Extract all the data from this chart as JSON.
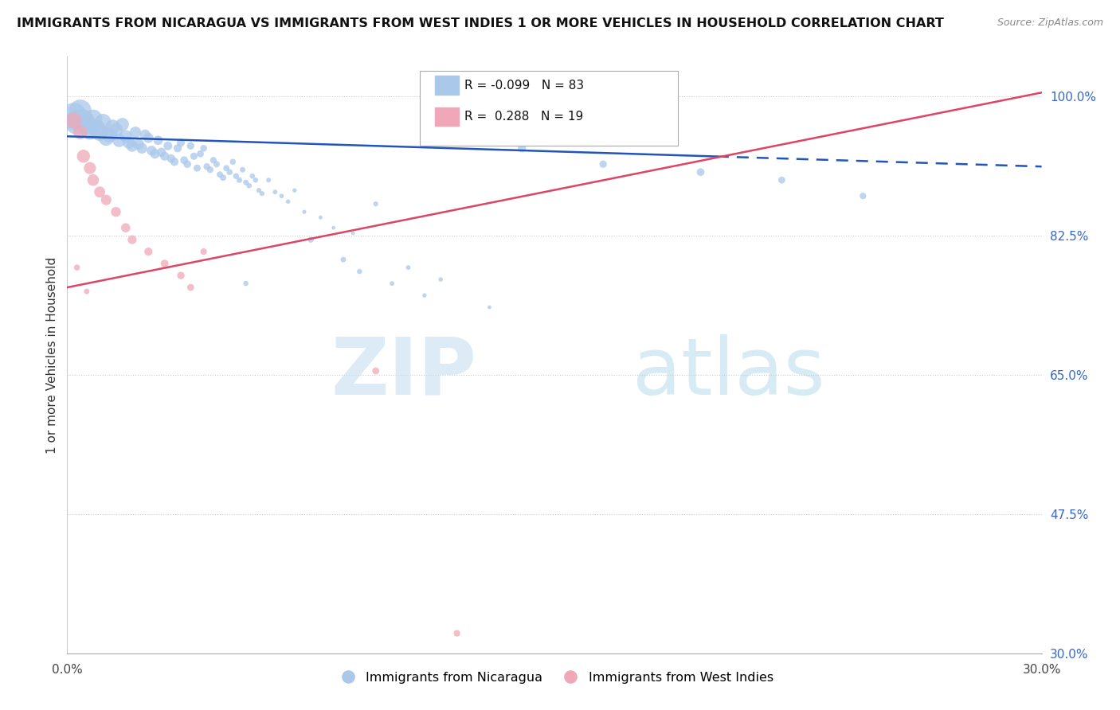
{
  "title": "IMMIGRANTS FROM NICARAGUA VS IMMIGRANTS FROM WEST INDIES 1 OR MORE VEHICLES IN HOUSEHOLD CORRELATION CHART",
  "source": "Source: ZipAtlas.com",
  "ylabel": "1 or more Vehicles in Household",
  "yticks": [
    30.0,
    47.5,
    65.0,
    82.5,
    100.0
  ],
  "ytick_labels": [
    "30.0%",
    "47.5%",
    "65.0%",
    "82.5%",
    "100.0%"
  ],
  "xmin": 0.0,
  "xmax": 30.0,
  "ymin": 30.0,
  "ymax": 105.0,
  "blue_R": -0.099,
  "blue_N": 83,
  "pink_R": 0.288,
  "pink_N": 19,
  "blue_color": "#aac8ea",
  "pink_color": "#f0a8b8",
  "blue_line_color": "#2255bb",
  "pink_line_color": "#dd4466",
  "blue_label": "Immigrants from Nicaragua",
  "pink_label": "Immigrants from West Indies",
  "watermark_zip": "ZIP",
  "watermark_atlas": "atlas",
  "blue_line_y0": 95.0,
  "blue_line_y30": 91.2,
  "pink_line_y0": 76.0,
  "pink_line_y30": 100.5,
  "blue_solid_xmax": 20.0,
  "blue_scatter_x": [
    0.2,
    0.3,
    0.4,
    0.5,
    0.6,
    0.7,
    0.8,
    0.9,
    1.0,
    1.1,
    1.2,
    1.3,
    1.4,
    1.5,
    1.6,
    1.7,
    1.8,
    1.9,
    2.0,
    2.1,
    2.2,
    2.3,
    2.4,
    2.5,
    2.6,
    2.7,
    2.8,
    2.9,
    3.0,
    3.1,
    3.2,
    3.3,
    3.4,
    3.5,
    3.6,
    3.7,
    3.8,
    3.9,
    4.0,
    4.1,
    4.2,
    4.3,
    4.4,
    4.5,
    4.6,
    4.7,
    4.8,
    4.9,
    5.0,
    5.1,
    5.2,
    5.3,
    5.4,
    5.5,
    5.6,
    5.7,
    5.8,
    5.9,
    6.0,
    6.2,
    6.4,
    6.6,
    6.8,
    7.0,
    7.3,
    7.8,
    8.2,
    8.8,
    9.5,
    10.5,
    11.5,
    14.0,
    16.5,
    19.5,
    22.0,
    24.5,
    5.5,
    7.5,
    8.5,
    9.0,
    10.0,
    11.0,
    13.0
  ],
  "blue_scatter_y": [
    97.5,
    96.8,
    98.2,
    97.0,
    96.5,
    95.8,
    97.2,
    96.0,
    95.5,
    96.8,
    94.8,
    95.2,
    96.2,
    95.8,
    94.5,
    96.5,
    95.0,
    94.2,
    93.8,
    95.5,
    94.0,
    93.5,
    95.2,
    94.8,
    93.2,
    92.8,
    94.5,
    93.0,
    92.5,
    93.8,
    92.2,
    91.8,
    93.5,
    94.2,
    92.0,
    91.5,
    93.8,
    92.5,
    91.0,
    92.8,
    93.5,
    91.2,
    90.8,
    92.0,
    91.5,
    90.2,
    89.8,
    91.0,
    90.5,
    91.8,
    90.0,
    89.5,
    90.8,
    89.2,
    88.8,
    90.0,
    89.5,
    88.2,
    87.8,
    89.5,
    88.0,
    87.5,
    86.8,
    88.2,
    85.5,
    84.8,
    83.5,
    82.8,
    86.5,
    78.5,
    77.0,
    93.5,
    91.5,
    90.5,
    89.5,
    87.5,
    76.5,
    82.0,
    79.5,
    78.0,
    76.5,
    75.0,
    73.5
  ],
  "blue_scatter_size": [
    600,
    500,
    420,
    380,
    340,
    310,
    280,
    260,
    240,
    220,
    200,
    185,
    170,
    160,
    150,
    140,
    130,
    120,
    115,
    108,
    100,
    95,
    90,
    85,
    80,
    76,
    72,
    68,
    65,
    62,
    59,
    56,
    54,
    52,
    50,
    48,
    46,
    44,
    42,
    40,
    38,
    37,
    36,
    35,
    34,
    33,
    32,
    31,
    30,
    29,
    28,
    27,
    26,
    25,
    24,
    23,
    22,
    21,
    20,
    19,
    18,
    17,
    16,
    15,
    14,
    13,
    12,
    11,
    20,
    18,
    16,
    55,
    45,
    50,
    40,
    35,
    22,
    30,
    25,
    22,
    18,
    15,
    12
  ],
  "pink_scatter_x": [
    0.2,
    0.4,
    0.5,
    0.7,
    0.8,
    1.0,
    1.2,
    1.5,
    1.8,
    2.0,
    2.5,
    3.0,
    3.5,
    3.8,
    4.2,
    0.3,
    0.6,
    9.5,
    12.0
  ],
  "pink_scatter_y": [
    97.0,
    95.5,
    92.5,
    91.0,
    89.5,
    88.0,
    87.0,
    85.5,
    83.5,
    82.0,
    80.5,
    79.0,
    77.5,
    76.0,
    80.5,
    78.5,
    75.5,
    65.5,
    32.5
  ],
  "pink_scatter_size": [
    200,
    160,
    140,
    120,
    110,
    100,
    90,
    80,
    70,
    65,
    55,
    50,
    45,
    40,
    35,
    30,
    25,
    40,
    35
  ]
}
